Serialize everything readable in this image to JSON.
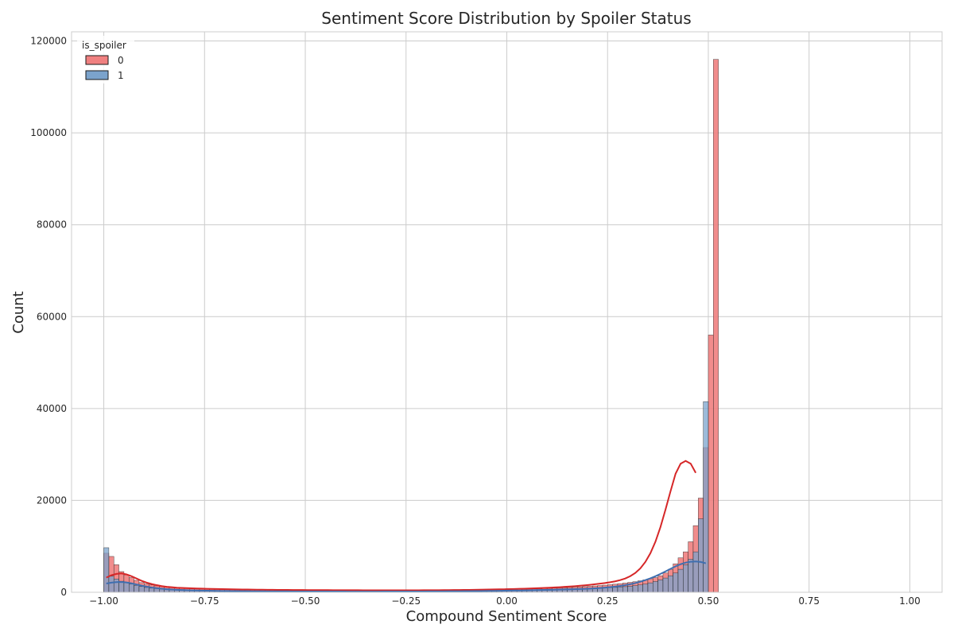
{
  "chart_data": {
    "type": "bar",
    "title": "Sentiment Score Distribution by Spoiler Status",
    "xlabel": "Compound Sentiment Score",
    "ylabel": "Count",
    "xlim": [
      -1.08,
      1.08
    ],
    "ylim": [
      0,
      122000
    ],
    "xticks": [
      "−1.00",
      "−0.75",
      "−0.50",
      "−0.25",
      "0.00",
      "0.25",
      "0.50",
      "0.75",
      "1.00"
    ],
    "xtick_values": [
      -1.0,
      -0.75,
      -0.5,
      -0.25,
      0.0,
      0.25,
      0.5,
      0.75,
      1.0
    ],
    "yticks": [
      "0",
      "20000",
      "40000",
      "60000",
      "80000",
      "100000",
      "120000"
    ],
    "ytick_values": [
      0,
      20000,
      40000,
      60000,
      80000,
      100000,
      120000
    ],
    "grid": true,
    "legend": {
      "title": "is_spoiler",
      "placement": "top-left",
      "entries": [
        "0",
        "1"
      ]
    },
    "bin_width": 0.0125,
    "bin_start": -1.0,
    "series": [
      {
        "name": "0",
        "color": "#f08080",
        "kde_color": "#d62728",
        "values": [
          8500,
          7800,
          6000,
          4500,
          3800,
          3200,
          2600,
          2100,
          1800,
          1600,
          1400,
          1300,
          1200,
          1100,
          1050,
          1000,
          950,
          900,
          870,
          840,
          810,
          780,
          750,
          730,
          710,
          690,
          670,
          650,
          630,
          610,
          600,
          590,
          580,
          570,
          560,
          550,
          540,
          530,
          520,
          510,
          500,
          495,
          490,
          485,
          480,
          475,
          470,
          465,
          460,
          455,
          450,
          448,
          446,
          444,
          442,
          440,
          438,
          436,
          434,
          432,
          430,
          430,
          432,
          434,
          436,
          440,
          445,
          450,
          455,
          460,
          470,
          480,
          490,
          500,
          515,
          530,
          545,
          560,
          580,
          600,
          620,
          640,
          660,
          690,
          720,
          750,
          780,
          820,
          860,
          900,
          950,
          1000,
          1050,
          1100,
          1160,
          1230,
          1300,
          1380,
          1460,
          1550,
          1650,
          1760,
          1880,
          2000,
          2150,
          2300,
          2500,
          2700,
          2950,
          3200,
          3600,
          4200,
          5000,
          6200,
          7500,
          8800,
          11000,
          14500,
          20500,
          31500,
          56000,
          116000
        ],
        "kde": [
          3200,
          3700,
          4000,
          4100,
          3900,
          3500,
          3000,
          2500,
          2100,
          1800,
          1550,
          1350,
          1200,
          1100,
          1000,
          950,
          900,
          860,
          820,
          790,
          760,
          730,
          710,
          690,
          670,
          650,
          630,
          610,
          595,
          580,
          570,
          560,
          550,
          540,
          530,
          520,
          510,
          500,
          495,
          490,
          485,
          480,
          475,
          470,
          465,
          460,
          455,
          450,
          448,
          446,
          444,
          442,
          440,
          438,
          436,
          434,
          432,
          430,
          430,
          432,
          434,
          436,
          440,
          445,
          450,
          455,
          460,
          470,
          480,
          490,
          500,
          515,
          530,
          545,
          560,
          580,
          600,
          620,
          640,
          660,
          690,
          720,
          750,
          780,
          820,
          860,
          900,
          950,
          1000,
          1050,
          1110,
          1180,
          1250,
          1330,
          1420,
          1520,
          1630,
          1750,
          1880,
          2020,
          2180,
          2380,
          2650,
          3000,
          3500,
          4200,
          5200,
          6600,
          8500,
          11000,
          14200,
          18000,
          22000,
          25800,
          28000,
          28600,
          28000,
          26000
        ]
      },
      {
        "name": "1",
        "color": "#7ba3cc",
        "kde_color": "#3f6fb0",
        "values": [
          9700,
          3500,
          2900,
          2400,
          2100,
          1800,
          1500,
          1250,
          1050,
          900,
          800,
          700,
          640,
          590,
          540,
          500,
          470,
          440,
          410,
          390,
          370,
          350,
          335,
          320,
          305,
          290,
          280,
          270,
          260,
          250,
          240,
          235,
          230,
          225,
          220,
          215,
          210,
          205,
          200,
          198,
          196,
          194,
          192,
          190,
          188,
          186,
          184,
          182,
          180,
          178,
          176,
          174,
          172,
          170,
          170,
          170,
          170,
          170,
          172,
          174,
          176,
          178,
          180,
          182,
          184,
          186,
          190,
          195,
          200,
          205,
          210,
          215,
          220,
          230,
          240,
          250,
          260,
          270,
          285,
          300,
          315,
          330,
          345,
          360,
          380,
          400,
          420,
          440,
          465,
          490,
          520,
          550,
          580,
          620,
          660,
          700,
          750,
          800,
          860,
          920,
          990,
          1060,
          1140,
          1230,
          1330,
          1450,
          1600,
          1800,
          2050,
          2350,
          2700,
          3100,
          3600,
          4200,
          5000,
          6000,
          7200,
          8800,
          16000,
          41500
        ],
        "kde": [
          1900,
          2100,
          2200,
          2250,
          2150,
          1950,
          1700,
          1450,
          1230,
          1050,
          900,
          780,
          680,
          600,
          540,
          490,
          450,
          415,
          385,
          360,
          340,
          320,
          305,
          290,
          275,
          262,
          250,
          240,
          232,
          224,
          216,
          210,
          204,
          198,
          194,
          190,
          186,
          182,
          178,
          175,
          172,
          170,
          168,
          166,
          165,
          164,
          163,
          162,
          161,
          160,
          160,
          160,
          160,
          160,
          161,
          162,
          163,
          164,
          165,
          167,
          170,
          173,
          176,
          180,
          185,
          190,
          196,
          202,
          210,
          218,
          226,
          235,
          245,
          256,
          268,
          281,
          295,
          310,
          326,
          343,
          361,
          380,
          400,
          421,
          443,
          466,
          490,
          515,
          541,
          568,
          596,
          625,
          655,
          686,
          720,
          760,
          810,
          870,
          940,
          1020,
          1120,
          1240,
          1380,
          1550,
          1750,
          2000,
          2300,
          2650,
          3050,
          3500,
          4000,
          4550,
          5100,
          5650,
          6100,
          6450,
          6650,
          6700,
          6600,
          6300
        ]
      }
    ]
  }
}
